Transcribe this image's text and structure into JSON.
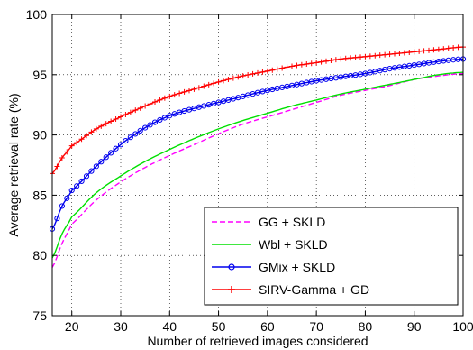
{
  "chart_data": {
    "type": "line",
    "title": "",
    "xlabel": "Number of retrieved images considered",
    "ylabel": "Average retrieval rate (%)",
    "xlim": [
      16,
      100
    ],
    "ylim": [
      75,
      100
    ],
    "xticks": [
      20,
      30,
      40,
      50,
      60,
      70,
      80,
      90,
      100
    ],
    "yticks": [
      75,
      80,
      85,
      90,
      95,
      100
    ],
    "grid": true,
    "legend_position": "lower-right",
    "x": [
      16,
      18,
      20,
      25,
      30,
      35,
      40,
      45,
      50,
      55,
      60,
      65,
      70,
      75,
      80,
      85,
      90,
      95,
      100
    ],
    "series": [
      {
        "name": "GG + SKLD",
        "color": "#ff00ff",
        "style": "dashed",
        "marker": "none",
        "values": [
          79.0,
          81.0,
          82.6,
          84.6,
          86.1,
          87.3,
          88.3,
          89.2,
          90.1,
          90.9,
          91.5,
          92.1,
          92.7,
          93.3,
          93.7,
          94.1,
          94.6,
          94.9,
          95.1
        ]
      },
      {
        "name": "Wbl + SKLD",
        "color": "#00e000",
        "style": "solid",
        "marker": "none",
        "values": [
          79.8,
          81.8,
          83.2,
          85.2,
          86.6,
          87.8,
          88.8,
          89.7,
          90.5,
          91.2,
          91.8,
          92.4,
          92.9,
          93.4,
          93.8,
          94.2,
          94.6,
          95.0,
          95.2
        ]
      },
      {
        "name": "GMix + SKLD",
        "color": "#0000ee",
        "style": "solid",
        "marker": "circle",
        "values": [
          82.2,
          84.1,
          85.4,
          87.4,
          89.2,
          90.6,
          91.6,
          92.2,
          92.7,
          93.2,
          93.7,
          94.1,
          94.5,
          94.8,
          95.1,
          95.5,
          95.8,
          96.1,
          96.3
        ]
      },
      {
        "name": "SIRV-Gamma + GD",
        "color": "#ff0000",
        "style": "solid",
        "marker": "plus",
        "values": [
          86.8,
          88.1,
          89.1,
          90.5,
          91.5,
          92.4,
          93.2,
          93.8,
          94.4,
          94.9,
          95.3,
          95.7,
          96.0,
          96.3,
          96.5,
          96.7,
          96.9,
          97.1,
          97.3
        ]
      }
    ]
  }
}
